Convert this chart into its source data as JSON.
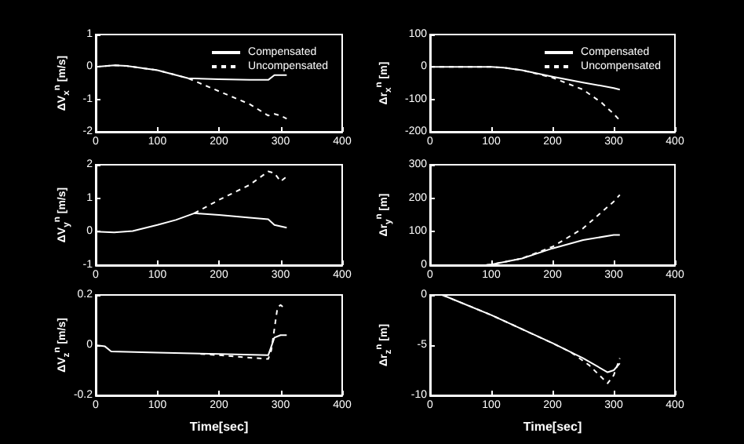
{
  "chart_data": [
    {
      "type": "line",
      "ylabel": "ΔV$_{x}$$^{n}$ [m/s]",
      "xlim": [
        0,
        400
      ],
      "xticks": [
        0,
        100,
        200,
        300,
        400
      ],
      "ylim": [
        -2,
        1
      ],
      "yticks": [
        -2,
        -1,
        0,
        1
      ],
      "legend": "top right",
      "grid": false,
      "marker": "none",
      "series": [
        {
          "name": "Compensated",
          "color": "#ffffff",
          "line_style": "solid",
          "x": [
            0,
            30,
            50,
            100,
            150,
            200,
            250,
            280,
            290,
            300,
            310
          ],
          "values": [
            0,
            0.05,
            0.03,
            -0.1,
            -0.35,
            -0.38,
            -0.4,
            -0.4,
            -0.25,
            -0.25,
            -0.25
          ]
        },
        {
          "name": "Uncompensated",
          "color": "#ffffff",
          "line_style": "dashed",
          "x": [
            0,
            30,
            50,
            100,
            150,
            200,
            250,
            280,
            290,
            300,
            310
          ],
          "values": [
            0,
            0.05,
            0.03,
            -0.1,
            -0.35,
            -0.75,
            -1.15,
            -1.5,
            -1.45,
            -1.5,
            -1.6
          ]
        }
      ]
    },
    {
      "type": "line",
      "ylabel": "Δr$_{x}$$^{n}$ [m]",
      "xlim": [
        0,
        400
      ],
      "xticks": [
        0,
        100,
        200,
        300,
        400
      ],
      "ylim": [
        -200,
        100
      ],
      "yticks": [
        -200,
        -100,
        0,
        100
      ],
      "legend": "top right",
      "grid": false,
      "marker": "none",
      "series": [
        {
          "name": "Compensated",
          "color": "#ffffff",
          "line_style": "solid",
          "x": [
            0,
            100,
            120,
            150,
            200,
            250,
            300,
            310
          ],
          "values": [
            0,
            0,
            -2,
            -10,
            -30,
            -48,
            -65,
            -70
          ]
        },
        {
          "name": "Uncompensated",
          "color": "#ffffff",
          "line_style": "dashed",
          "x": [
            0,
            100,
            120,
            150,
            200,
            250,
            280,
            300,
            310
          ],
          "values": [
            0,
            0,
            -2,
            -10,
            -33,
            -70,
            -110,
            -145,
            -165
          ]
        }
      ]
    },
    {
      "type": "line",
      "ylabel": "ΔV$_{y}$$^{n}$ [m/s]",
      "xlim": [
        0,
        400
      ],
      "xticks": [
        0,
        100,
        200,
        300,
        400
      ],
      "ylim": [
        -1,
        2
      ],
      "yticks": [
        -1,
        0,
        1,
        2
      ],
      "grid": false,
      "marker": "none",
      "series": [
        {
          "color": "#ffffff",
          "line_style": "solid",
          "x": [
            0,
            30,
            60,
            100,
            130,
            160,
            200,
            250,
            280,
            290,
            310
          ],
          "values": [
            0,
            -0.02,
            0.02,
            0.2,
            0.35,
            0.55,
            0.5,
            0.42,
            0.37,
            0.2,
            0.12
          ]
        },
        {
          "color": "#ffffff",
          "line_style": "dashed",
          "x": [
            160,
            200,
            250,
            280,
            290,
            300,
            310
          ],
          "values": [
            0.55,
            0.95,
            1.4,
            1.8,
            1.75,
            1.5,
            1.65
          ]
        }
      ]
    },
    {
      "type": "line",
      "ylabel": "Δr$_{y}$$^{n}$ [m]",
      "xlim": [
        0,
        400
      ],
      "xticks": [
        0,
        100,
        200,
        300,
        400
      ],
      "ylim": [
        0,
        300
      ],
      "yticks": [
        0,
        100,
        200,
        300
      ],
      "grid": false,
      "marker": "none",
      "series": [
        {
          "color": "#ffffff",
          "line_style": "solid",
          "x": [
            0,
            90,
            100,
            150,
            200,
            250,
            300,
            310
          ],
          "values": [
            0,
            0,
            2,
            20,
            50,
            75,
            90,
            90
          ]
        },
        {
          "color": "#ffffff",
          "line_style": "dashed",
          "x": [
            0,
            90,
            100,
            150,
            200,
            250,
            300,
            310
          ],
          "values": [
            0,
            0,
            2,
            20,
            55,
            110,
            190,
            210
          ]
        }
      ]
    },
    {
      "type": "line",
      "xlabel": "Time[sec]",
      "ylabel": "ΔV$_{z}$$^{n}$ [m/s]",
      "xlim": [
        0,
        400
      ],
      "xticks": [
        0,
        100,
        200,
        300,
        400
      ],
      "ylim": [
        -0.2,
        0.2
      ],
      "yticks": [
        -0.2,
        0,
        0.2
      ],
      "grid": false,
      "marker": "none",
      "series": [
        {
          "color": "#ffffff",
          "line_style": "solid",
          "x": [
            0,
            15,
            25,
            100,
            200,
            280,
            290,
            300,
            310
          ],
          "values": [
            0,
            -0.005,
            -0.025,
            -0.03,
            -0.035,
            -0.04,
            0.03,
            0.04,
            0.04
          ]
        },
        {
          "color": "#ffffff",
          "line_style": "dashed",
          "x": [
            170,
            200,
            250,
            280,
            285,
            295,
            300,
            305
          ],
          "values": [
            -0.035,
            -0.04,
            -0.05,
            -0.055,
            -0.02,
            0.15,
            0.16,
            0.15
          ]
        }
      ]
    },
    {
      "type": "line",
      "xlabel": "Time[sec]",
      "ylabel": "Δr$_{z}$$^{n}$ [m]",
      "xlim": [
        0,
        400
      ],
      "xticks": [
        0,
        100,
        200,
        300,
        400
      ],
      "ylim": [
        -10,
        0
      ],
      "yticks": [
        -10,
        -5,
        0
      ],
      "grid": false,
      "marker": "none",
      "series": [
        {
          "color": "#ffffff",
          "line_style": "solid",
          "x": [
            20,
            100,
            200,
            250,
            290,
            300,
            310
          ],
          "values": [
            0,
            -2,
            -4.8,
            -6.3,
            -7.7,
            -7.5,
            -6.8
          ]
        },
        {
          "color": "#ffffff",
          "line_style": "dashed",
          "x": [
            20,
            100,
            200,
            230,
            260,
            290,
            300,
            310
          ],
          "values": [
            0,
            -2,
            -4.8,
            -5.7,
            -7,
            -8.8,
            -8,
            -6.3
          ]
        }
      ]
    }
  ]
}
